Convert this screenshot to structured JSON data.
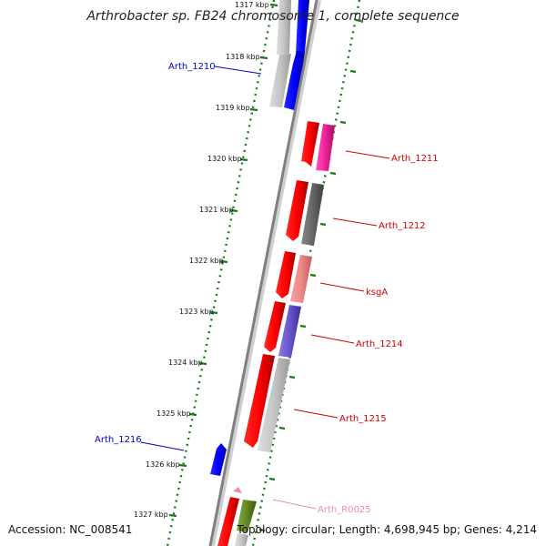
{
  "title": "Arthrobacter sp. FB24 chromosome 1, complete sequence",
  "footer": {
    "accession": "Accession: NC_008541",
    "summary": "Topology: circular; Length: 4,698,945 bp; Genes: 4,214"
  },
  "ticks": [
    "1317 kbp",
    "1318 kbp",
    "1319 kbp",
    "1320 kbp",
    "1321 kbp",
    "1322 kbp",
    "1323 kbp",
    "1324 kbp",
    "1325 kbp",
    "1326 kbp",
    "1327 kbp"
  ],
  "gene_labels": [
    {
      "text": "Arth_1210",
      "color": "#0000cc"
    },
    {
      "text": "Arth_1211",
      "color": "#cc0000"
    },
    {
      "text": "Arth_1212",
      "color": "#cc0000"
    },
    {
      "text": "ksgA",
      "color": "#cc0000"
    },
    {
      "text": "Arth_1214",
      "color": "#cc0000"
    },
    {
      "text": "Arth_1215",
      "color": "#cc0000"
    },
    {
      "text": "Arth_1216",
      "color": "#0000cc"
    },
    {
      "text": "Arth_R0025",
      "color": "#ee88bb"
    }
  ],
  "colors": {
    "backbone": "#808080",
    "tick_marks": "#1a7a1a",
    "forward_cds": "#0000ee",
    "reverse_cds": "#ee0000",
    "cog_grey": "#bbbbbb",
    "cog_magenta": "#ee2299",
    "cog_dark_grey": "#666666",
    "cog_salmon": "#ee8888",
    "cog_purple": "#6655cc",
    "cog_olive": "#668822",
    "rna": "#ee88bb"
  }
}
